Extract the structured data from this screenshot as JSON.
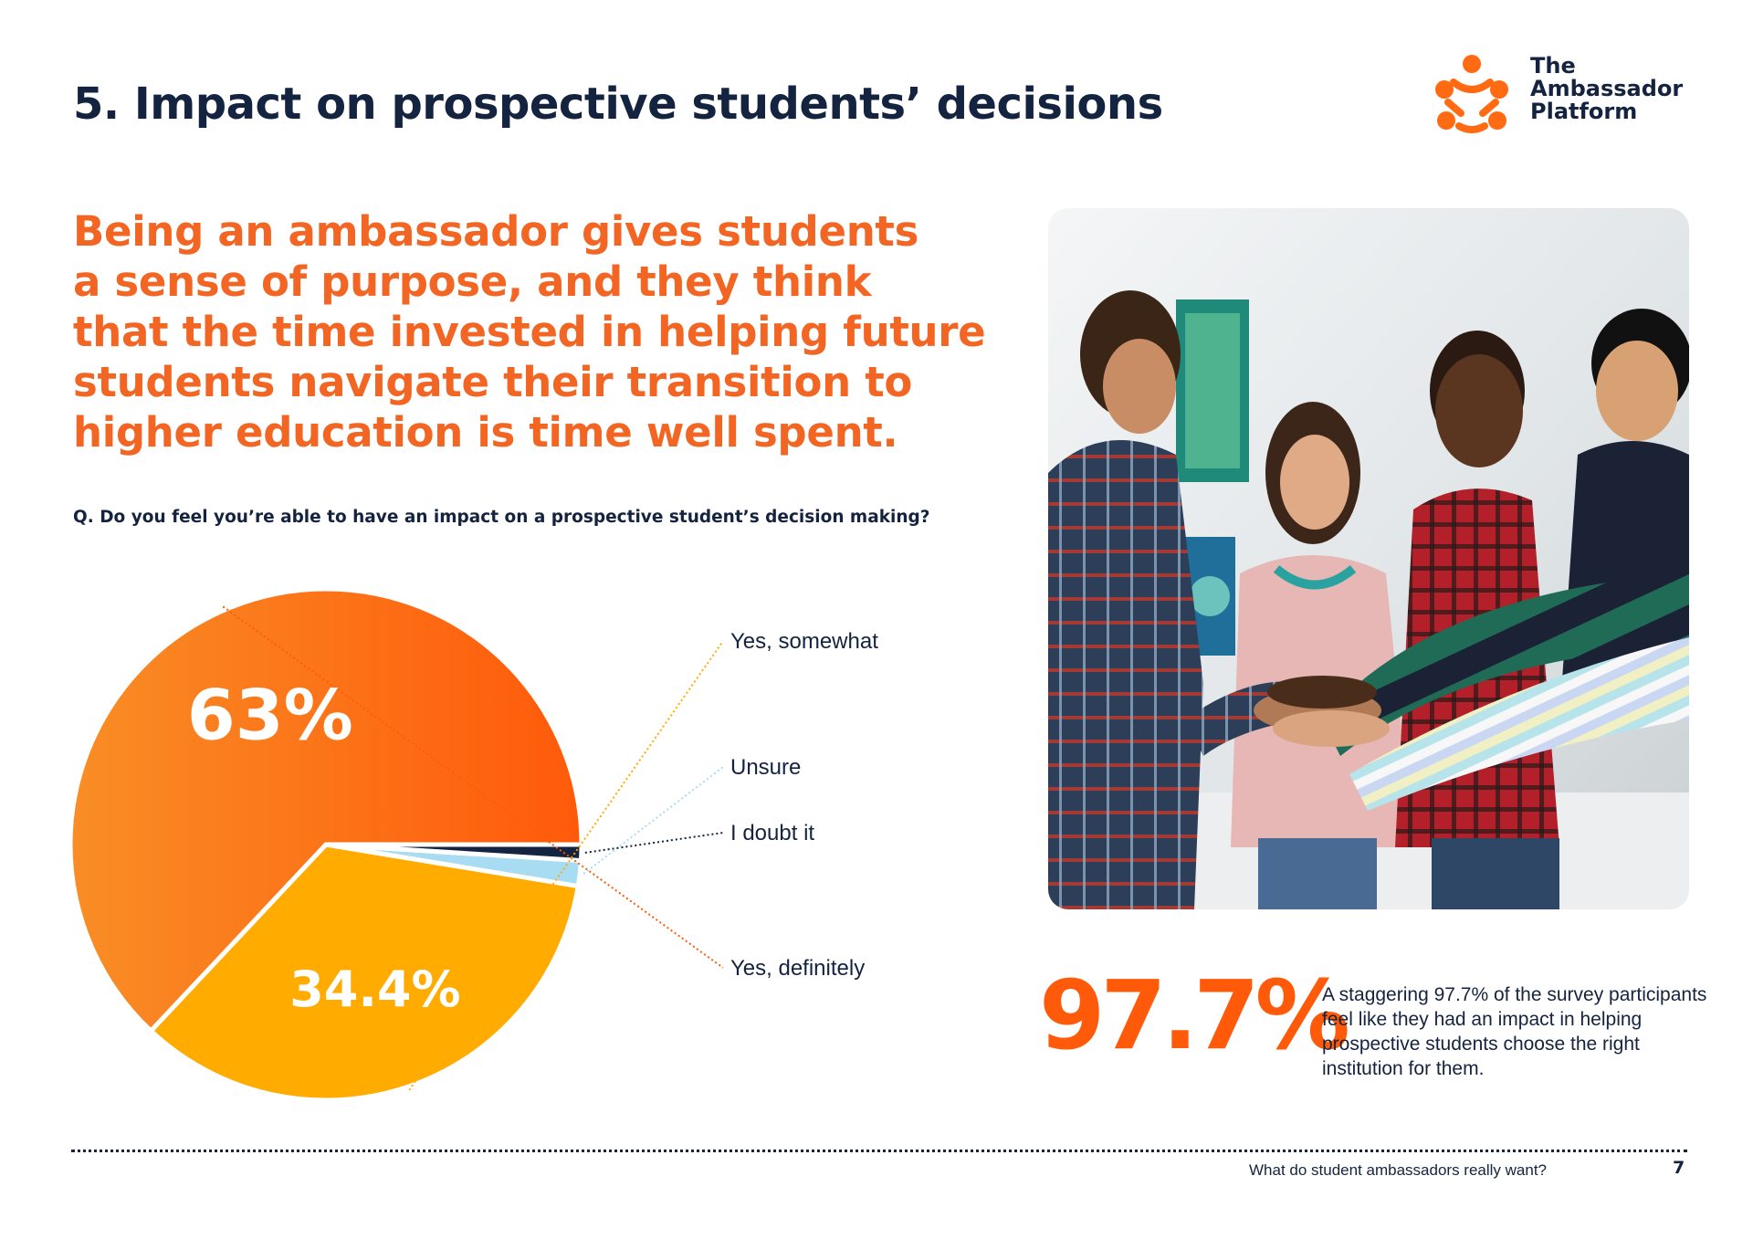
{
  "page": {
    "title": "5. Impact on prospective students’ decisions",
    "headline_lines": [
      "Being an ambassador gives students",
      "a sense of purpose, and they think",
      "that the time invested in helping future",
      "students navigate their transition to",
      "higher education is time well spent."
    ]
  },
  "logo": {
    "lines": [
      "The",
      "Ambassador",
      "Platform"
    ],
    "icon": "ambassador-platform-logo-icon"
  },
  "chart_data": {
    "type": "pie",
    "title": "Q. Do you feel you’re able to have an impact on a prospective student’s decision making?",
    "slices": [
      {
        "label": "Yes, definitely",
        "value": 63,
        "value_label": "63%",
        "color": "#ff5a0a",
        "color_light": "#f98d26",
        "shown": true
      },
      {
        "label": "Yes, somewhat",
        "value": 34.4,
        "value_label": "34.4%",
        "color": "#ffab00",
        "shown": true
      },
      {
        "label": "Unsure",
        "value": 1.6,
        "value_label": "",
        "color": "#a8dcf2",
        "shown": false
      },
      {
        "label": "I doubt it",
        "value": 1,
        "value_label": "",
        "color": "#14233f",
        "shown": false
      }
    ],
    "start_angle_deg": 0,
    "direction": "counterclockwise",
    "separator_color": "#ffffff"
  },
  "highlight": {
    "value": "97.7%",
    "text": "A staggering 97.7% of the survey participants feel like they had an impact in helping prospective students choose the right institution for them."
  },
  "photo": {
    "icon": "students-hands-together-photo"
  },
  "footer": {
    "text": "What do student ambassadors really want?",
    "page_number": "7"
  },
  "colors": {
    "navy": "#14233f",
    "orange": "#ff5a0a",
    "headline_orange": "#f26522",
    "amber": "#ffab00",
    "light_blue": "#a8dcf2"
  }
}
